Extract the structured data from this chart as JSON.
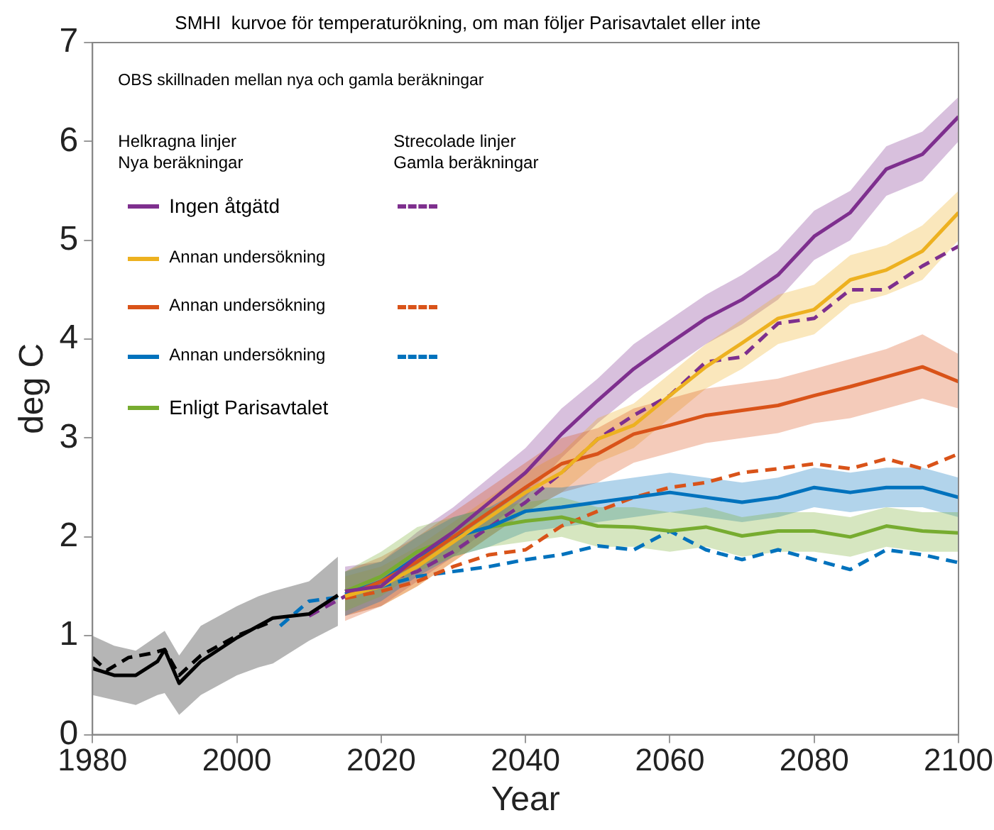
{
  "chart_data": {
    "type": "line",
    "title": "SMHI  kurvoe för temperaturökning, om man följer Parisavtalet eller inte",
    "xlabel": "Year",
    "ylabel": "deg C",
    "annotations": [
      "OBS skillnaden mellan nya och gamla beräkningar",
      "Helkragna linjer\nNya beräkningar",
      "Strecolade linjer\nGamla beräkningar"
    ],
    "xlim": [
      1980,
      2100
    ],
    "xticks": [
      1980,
      2000,
      2020,
      2040,
      2060,
      2080,
      2100
    ],
    "ylim": [
      0,
      7
    ],
    "yticks": [
      0,
      1,
      2,
      3,
      4,
      5,
      6,
      7
    ],
    "grid": false,
    "legend": "top left",
    "marker": "none",
    "line_style": "solid",
    "series": [
      {
        "name": "Ingen åtgätd",
        "color": "#7e2f8e",
        "x": [
          2015,
          2020,
          2025,
          2030,
          2035,
          2040,
          2045,
          2050,
          2055,
          2060,
          2065,
          2070,
          2075,
          2080,
          2085,
          2090,
          2095,
          2100
        ],
        "values": [
          1.45,
          1.5,
          1.8,
          2.05,
          2.35,
          2.65,
          3.04,
          3.38,
          3.7,
          3.96,
          4.21,
          4.4,
          4.65,
          5.04,
          5.28,
          5.72,
          5.87,
          6.25
        ],
        "lower": [
          1.2,
          1.3,
          1.55,
          1.8,
          2.1,
          2.4,
          2.8,
          3.15,
          3.45,
          3.7,
          3.95,
          4.15,
          4.4,
          4.8,
          5.0,
          5.45,
          5.6,
          6.0
        ],
        "upper": [
          1.7,
          1.75,
          2.05,
          2.3,
          2.6,
          2.9,
          3.3,
          3.6,
          3.95,
          4.2,
          4.45,
          4.65,
          4.9,
          5.3,
          5.5,
          5.95,
          6.1,
          6.45
        ]
      },
      {
        "name": "Annan undersökning",
        "color": "#edb120",
        "x": [
          2015,
          2020,
          2025,
          2030,
          2035,
          2040,
          2045,
          2050,
          2055,
          2060,
          2065,
          2070,
          2075,
          2080,
          2085,
          2090,
          2095,
          2100
        ],
        "values": [
          1.4,
          1.5,
          1.7,
          1.95,
          2.2,
          2.45,
          2.65,
          2.99,
          3.13,
          3.43,
          3.72,
          3.96,
          4.21,
          4.3,
          4.6,
          4.7,
          4.89,
          5.28
        ],
        "lower": [
          1.2,
          1.3,
          1.5,
          1.75,
          2.0,
          2.25,
          2.45,
          2.75,
          2.9,
          3.2,
          3.5,
          3.7,
          3.95,
          4.05,
          4.35,
          4.45,
          4.6,
          5.0
        ],
        "upper": [
          1.6,
          1.7,
          1.9,
          2.15,
          2.4,
          2.65,
          2.85,
          3.2,
          3.35,
          3.65,
          3.95,
          4.2,
          4.45,
          4.55,
          4.85,
          4.95,
          5.15,
          5.5
        ]
      },
      {
        "name": "Annan undersökning",
        "color": "#d95319",
        "x": [
          2015,
          2020,
          2025,
          2030,
          2035,
          2040,
          2045,
          2050,
          2055,
          2060,
          2065,
          2070,
          2075,
          2080,
          2085,
          2090,
          2095,
          2100
        ],
        "values": [
          1.4,
          1.55,
          1.75,
          2.0,
          2.25,
          2.5,
          2.74,
          2.84,
          3.04,
          3.13,
          3.23,
          3.28,
          3.33,
          3.43,
          3.52,
          3.62,
          3.72,
          3.57
        ],
        "lower": [
          1.15,
          1.3,
          1.5,
          1.75,
          2.0,
          2.25,
          2.45,
          2.55,
          2.75,
          2.85,
          2.95,
          3.0,
          3.05,
          3.15,
          3.2,
          3.3,
          3.4,
          3.3
        ],
        "upper": [
          1.65,
          1.8,
          2.0,
          2.25,
          2.5,
          2.75,
          3.0,
          3.1,
          3.3,
          3.4,
          3.5,
          3.55,
          3.6,
          3.7,
          3.8,
          3.9,
          4.05,
          3.85
        ]
      },
      {
        "name": "Annan undersökning",
        "color": "#0072bd",
        "x": [
          2015,
          2020,
          2025,
          2030,
          2035,
          2040,
          2045,
          2050,
          2055,
          2060,
          2065,
          2070,
          2075,
          2080,
          2085,
          2090,
          2095,
          2100
        ],
        "values": [
          1.42,
          1.55,
          1.8,
          2.0,
          2.1,
          2.26,
          2.3,
          2.35,
          2.4,
          2.45,
          2.4,
          2.35,
          2.4,
          2.5,
          2.45,
          2.5,
          2.5,
          2.4
        ],
        "lower": [
          1.2,
          1.35,
          1.6,
          1.8,
          1.9,
          2.05,
          2.1,
          2.15,
          2.2,
          2.25,
          2.2,
          2.15,
          2.2,
          2.3,
          2.25,
          2.3,
          2.3,
          2.2
        ],
        "upper": [
          1.65,
          1.75,
          2.0,
          2.2,
          2.3,
          2.5,
          2.5,
          2.55,
          2.6,
          2.65,
          2.6,
          2.55,
          2.6,
          2.7,
          2.65,
          2.7,
          2.7,
          2.6
        ]
      },
      {
        "name": "Enligt Parisavtalet",
        "color": "#77ac30",
        "x": [
          2015,
          2020,
          2025,
          2030,
          2035,
          2040,
          2045,
          2050,
          2055,
          2060,
          2065,
          2070,
          2075,
          2080,
          2085,
          2090,
          2095,
          2100
        ],
        "values": [
          1.45,
          1.6,
          1.85,
          2.0,
          2.1,
          2.16,
          2.2,
          2.11,
          2.1,
          2.06,
          2.1,
          2.01,
          2.06,
          2.06,
          2.0,
          2.11,
          2.06,
          2.04
        ],
        "lower": [
          1.25,
          1.4,
          1.65,
          1.8,
          1.9,
          1.95,
          2.0,
          1.9,
          1.9,
          1.85,
          1.9,
          1.8,
          1.85,
          1.85,
          1.8,
          1.9,
          1.85,
          1.85
        ],
        "upper": [
          1.65,
          1.85,
          2.1,
          2.2,
          2.3,
          2.35,
          2.4,
          2.3,
          2.3,
          2.25,
          2.3,
          2.2,
          2.25,
          2.25,
          2.2,
          2.3,
          2.25,
          2.25
        ]
      },
      {
        "color": "#000000",
        "x": [
          1980,
          1983,
          1986,
          1989,
          1990,
          1992,
          1995,
          2000,
          2003,
          2005,
          2010,
          2014
        ],
        "values": [
          0.67,
          0.6,
          0.6,
          0.74,
          0.86,
          0.52,
          0.74,
          0.98,
          1.1,
          1.18,
          1.22,
          1.41
        ],
        "lower": [
          0.4,
          0.35,
          0.3,
          0.4,
          0.42,
          0.2,
          0.4,
          0.6,
          0.68,
          0.72,
          0.95,
          1.1
        ],
        "upper": [
          1.0,
          0.9,
          0.85,
          1.0,
          1.05,
          0.8,
          1.1,
          1.3,
          1.4,
          1.45,
          1.55,
          1.8
        ]
      },
      {
        "color": "#000000",
        "line_style": "dashed",
        "x": [
          1980,
          1982,
          1985,
          1988,
          1990,
          1992,
          1995,
          2000,
          2005
        ],
        "values": [
          0.78,
          0.65,
          0.78,
          0.82,
          0.86,
          0.6,
          0.8,
          1.0,
          1.15
        ]
      },
      {
        "color": "#7e2f8e",
        "line_style": "dashed",
        "x": [
          2010,
          2015,
          2020,
          2025,
          2030,
          2035,
          2040,
          2045,
          2050,
          2055,
          2060,
          2065,
          2070,
          2075,
          2080,
          2085,
          2090,
          2095,
          2100
        ],
        "values": [
          1.2,
          1.4,
          1.55,
          1.65,
          1.85,
          2.1,
          2.35,
          2.65,
          2.99,
          3.23,
          3.43,
          3.77,
          3.82,
          4.16,
          4.21,
          4.5,
          4.5,
          4.74,
          4.94
        ]
      },
      {
        "color": "#d95319",
        "line_style": "dashed",
        "x": [
          2015,
          2020,
          2025,
          2030,
          2035,
          2040,
          2045,
          2050,
          2055,
          2060,
          2065,
          2070,
          2075,
          2080,
          2085,
          2090,
          2095,
          2100
        ],
        "values": [
          1.38,
          1.45,
          1.55,
          1.7,
          1.82,
          1.87,
          2.11,
          2.26,
          2.4,
          2.5,
          2.55,
          2.65,
          2.69,
          2.74,
          2.69,
          2.79,
          2.69,
          2.84
        ]
      },
      {
        "color": "#0072bd",
        "line_style": "dashed",
        "x": [
          2006,
          2010,
          2015,
          2020,
          2025,
          2030,
          2035,
          2040,
          2045,
          2050,
          2055,
          2060,
          2065,
          2070,
          2075,
          2080,
          2085,
          2090,
          2095,
          2100
        ],
        "values": [
          1.1,
          1.35,
          1.4,
          1.5,
          1.6,
          1.65,
          1.7,
          1.77,
          1.82,
          1.91,
          1.87,
          2.06,
          1.87,
          1.77,
          1.87,
          1.77,
          1.67,
          1.87,
          1.82,
          1.74
        ]
      }
    ]
  }
}
